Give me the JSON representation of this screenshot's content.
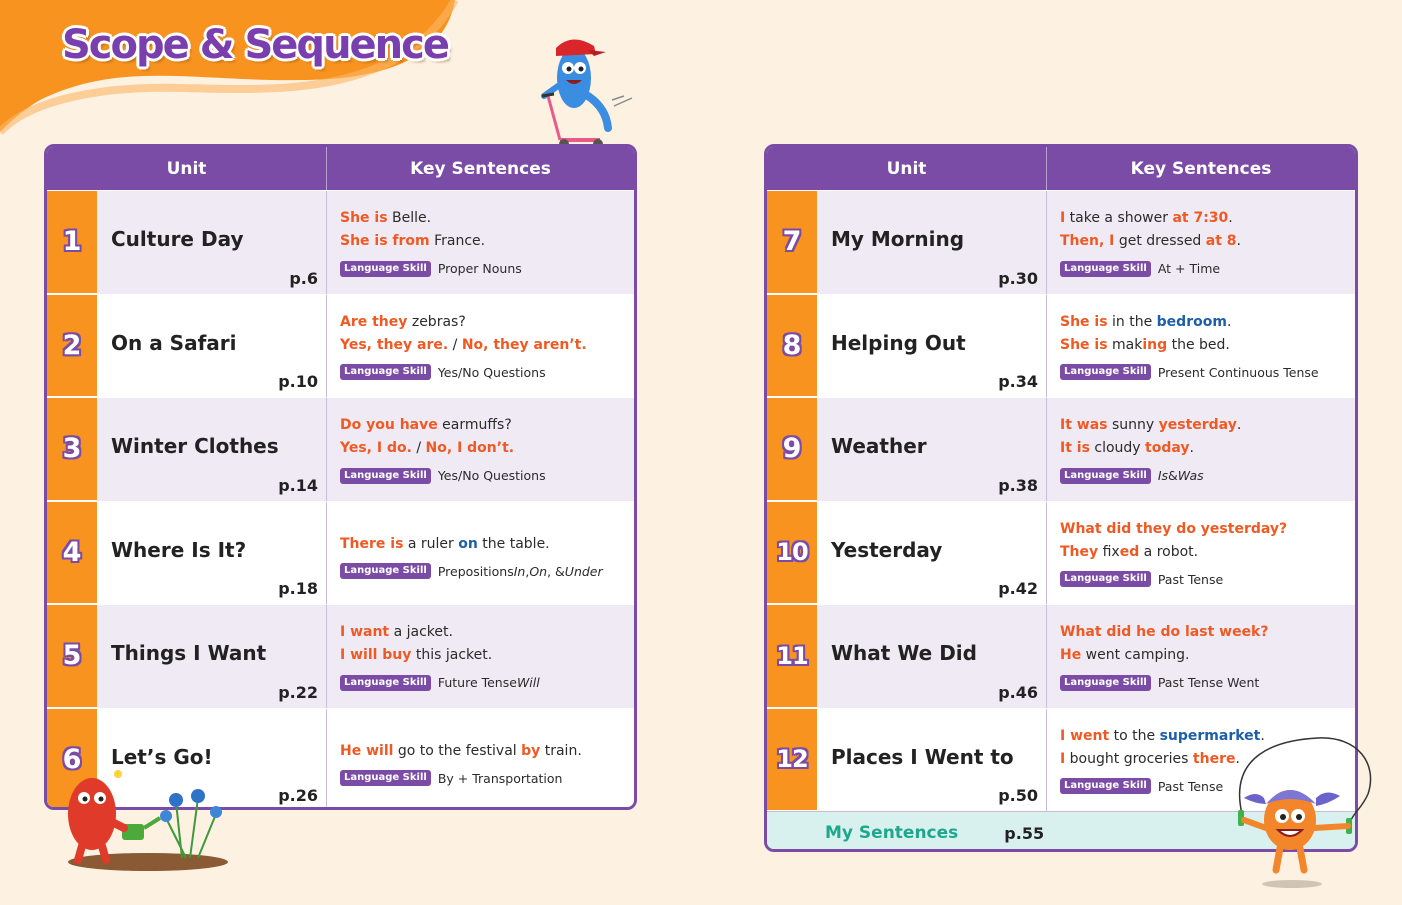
{
  "page": {
    "title": "Scope & Sequence"
  },
  "colors": {
    "accent_purple": "#7b4ca6",
    "accent_orange": "#f7931e",
    "highlight_orange": "#ef5a24",
    "highlight_blue": "#1d5fa8",
    "my_sentences_bg": "#d9f1ee"
  },
  "table_headers": {
    "unit": "Unit",
    "key_sentences": "Key Sentences"
  },
  "badge_label": "Language Skill",
  "units": [
    {
      "number": "1",
      "name": "Culture Day",
      "page": "p.6",
      "lines": [
        [
          {
            "t": "She is",
            "s": "o"
          },
          {
            "t": " Belle."
          }
        ],
        [
          {
            "t": "She is from",
            "s": "o"
          },
          {
            "t": " France."
          }
        ]
      ],
      "skill": [
        {
          "t": "Proper Nouns"
        }
      ]
    },
    {
      "number": "2",
      "name": "On a Safari",
      "page": "p.10",
      "lines": [
        [
          {
            "t": "Are they",
            "s": "o"
          },
          {
            "t": " zebras?"
          }
        ],
        [
          {
            "t": "Yes, they are.",
            "s": "o"
          },
          {
            "t": " / "
          },
          {
            "t": "No, they aren’t.",
            "s": "o"
          }
        ]
      ],
      "skill": [
        {
          "t": "Yes/No Questions"
        }
      ]
    },
    {
      "number": "3",
      "name": "Winter Clothes",
      "page": "p.14",
      "lines": [
        [
          {
            "t": "Do you have",
            "s": "o"
          },
          {
            "t": " earmuffs?"
          }
        ],
        [
          {
            "t": "Yes, I do.",
            "s": "o"
          },
          {
            "t": " / "
          },
          {
            "t": "No, I don’t.",
            "s": "o"
          }
        ]
      ],
      "skill": [
        {
          "t": "Yes/No Questions"
        }
      ]
    },
    {
      "number": "4",
      "name": "Where Is It?",
      "page": "p.18",
      "lines": [
        [
          {
            "t": "There is",
            "s": "o"
          },
          {
            "t": " a ruler "
          },
          {
            "t": "on",
            "s": "b"
          },
          {
            "t": " the table."
          }
        ]
      ],
      "skill": [
        {
          "t": "Prepositions "
        },
        {
          "t": "In",
          "s": "i"
        },
        {
          "t": ", "
        },
        {
          "t": "On",
          "s": "i"
        },
        {
          "t": ", & "
        },
        {
          "t": "Under",
          "s": "i"
        }
      ]
    },
    {
      "number": "5",
      "name": "Things I Want",
      "page": "p.22",
      "lines": [
        [
          {
            "t": "I want",
            "s": "o"
          },
          {
            "t": " a jacket."
          }
        ],
        [
          {
            "t": "I will buy",
            "s": "o"
          },
          {
            "t": " this jacket."
          }
        ]
      ],
      "skill": [
        {
          "t": "Future Tense "
        },
        {
          "t": "Will",
          "s": "i"
        }
      ]
    },
    {
      "number": "6",
      "name": "Let’s Go!",
      "page": "p.26",
      "lines": [
        [
          {
            "t": "He will",
            "s": "o"
          },
          {
            "t": " go to the festival "
          },
          {
            "t": "by",
            "s": "o"
          },
          {
            "t": " train."
          }
        ]
      ],
      "skill": [
        {
          "t": "By + Transportation"
        }
      ]
    },
    {
      "number": "7",
      "name": "My Morning",
      "page": "p.30",
      "lines": [
        [
          {
            "t": "I",
            "s": "o"
          },
          {
            "t": " take a shower "
          },
          {
            "t": "at 7:30",
            "s": "o"
          },
          {
            "t": "."
          }
        ],
        [
          {
            "t": "Then, I",
            "s": "o"
          },
          {
            "t": " get dressed "
          },
          {
            "t": "at 8",
            "s": "o"
          },
          {
            "t": "."
          }
        ]
      ],
      "skill": [
        {
          "t": "At + Time"
        }
      ]
    },
    {
      "number": "8",
      "name": "Helping Out",
      "page": "p.34",
      "lines": [
        [
          {
            "t": "She is",
            "s": "o"
          },
          {
            "t": " in the "
          },
          {
            "t": "bedroom",
            "s": "b"
          },
          {
            "t": "."
          }
        ],
        [
          {
            "t": "She is",
            "s": "o"
          },
          {
            "t": " mak"
          },
          {
            "t": "ing",
            "s": "o"
          },
          {
            "t": " the bed."
          }
        ]
      ],
      "skill": [
        {
          "t": "Present Continuous Tense"
        }
      ]
    },
    {
      "number": "9",
      "name": "Weather",
      "page": "p.38",
      "lines": [
        [
          {
            "t": "It was",
            "s": "o"
          },
          {
            "t": " sunny "
          },
          {
            "t": "yesterday",
            "s": "o"
          },
          {
            "t": "."
          }
        ],
        [
          {
            "t": "It is",
            "s": "o"
          },
          {
            "t": " cloudy "
          },
          {
            "t": "today",
            "s": "o"
          },
          {
            "t": "."
          }
        ]
      ],
      "skill": [
        {
          "t": "Is",
          "s": "i"
        },
        {
          "t": " & "
        },
        {
          "t": "Was",
          "s": "i"
        }
      ]
    },
    {
      "number": "10",
      "name": "Yesterday",
      "page": "p.42",
      "lines": [
        [
          {
            "t": "What did they do yesterday?",
            "s": "o"
          }
        ],
        [
          {
            "t": "They",
            "s": "o"
          },
          {
            "t": " fix"
          },
          {
            "t": "ed",
            "s": "o"
          },
          {
            "t": " a robot."
          }
        ]
      ],
      "skill": [
        {
          "t": "Past Tense"
        }
      ]
    },
    {
      "number": "11",
      "name": "What We Did",
      "page": "p.46",
      "lines": [
        [
          {
            "t": "What did he do last week?",
            "s": "o"
          }
        ],
        [
          {
            "t": "He",
            "s": "o"
          },
          {
            "t": " went camping."
          }
        ]
      ],
      "skill": [
        {
          "t": "Past Tense Went"
        }
      ]
    },
    {
      "number": "12",
      "name": "Places I Went to",
      "page": "p.50",
      "lines": [
        [
          {
            "t": "I went",
            "s": "o"
          },
          {
            "t": " to the "
          },
          {
            "t": "supermarket",
            "s": "b"
          },
          {
            "t": "."
          }
        ],
        [
          {
            "t": "I",
            "s": "o"
          },
          {
            "t": " bought groceries "
          },
          {
            "t": "there",
            "s": "o"
          },
          {
            "t": "."
          }
        ]
      ],
      "skill": [
        {
          "t": "Past Tense"
        }
      ]
    }
  ],
  "my_sentences": {
    "label": "My Sentences",
    "page": "p.55"
  },
  "illustrations": [
    "blue-monster-scooter-icon",
    "red-monster-watering-icon",
    "orange-monster-jump-rope-icon"
  ]
}
